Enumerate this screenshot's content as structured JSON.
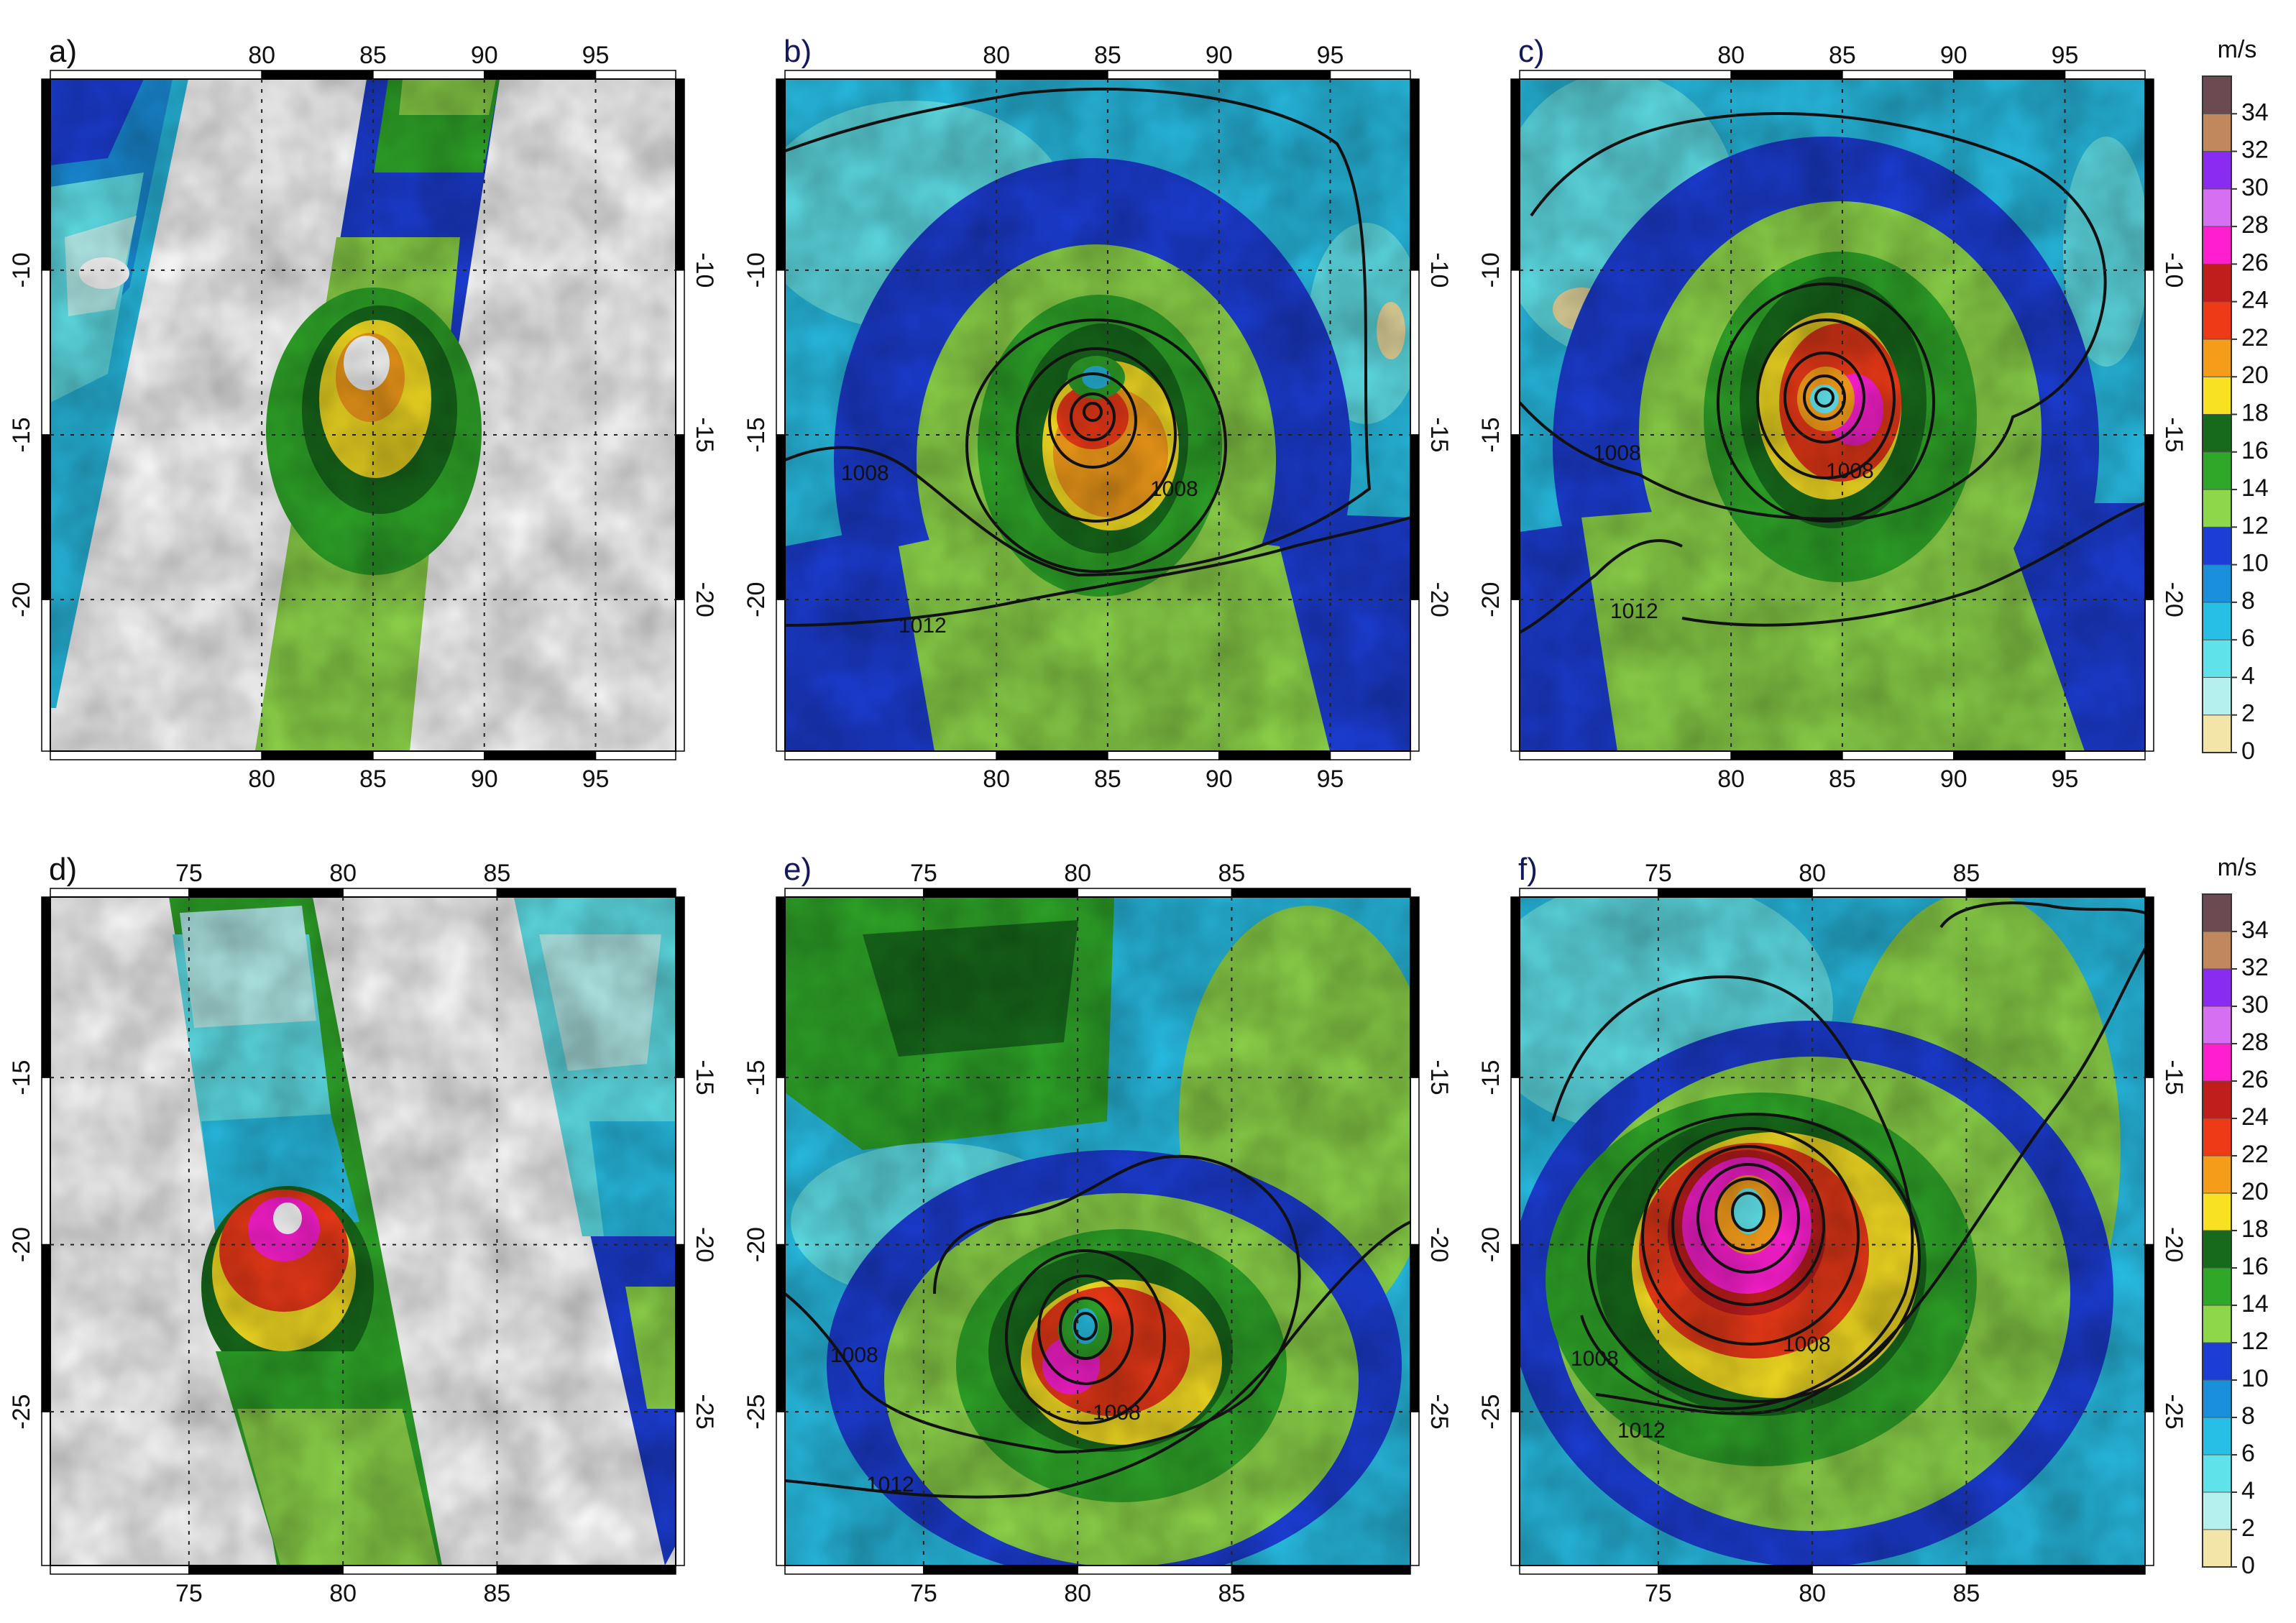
{
  "chart_data": {
    "type": "heatmap",
    "colorbar": {
      "unit": "m/s",
      "ticks": [
        0,
        2,
        4,
        6,
        8,
        10,
        12,
        14,
        16,
        18,
        20,
        22,
        24,
        26,
        28,
        30,
        32,
        34
      ],
      "colors": [
        "#f3e5a8",
        "#b5f0ee",
        "#60e2ea",
        "#28bfe6",
        "#1a8fdc",
        "#1c3ed7",
        "#8ed64a",
        "#2fa829",
        "#176a1b",
        "#f8e023",
        "#f59d1a",
        "#ef3a18",
        "#c01d1d",
        "#ff1fd1",
        "#d76ff2",
        "#8a2bf2",
        "#c0885c",
        "#6b4a52"
      ]
    },
    "panels": [
      {
        "label": "a)",
        "x_ticks": [
          "80",
          "85",
          "90",
          "95"
        ],
        "y_ticks": [
          "-10",
          "-15",
          "-20"
        ]
      },
      {
        "label": "b)",
        "x_ticks": [
          "80",
          "85",
          "90",
          "95"
        ],
        "y_ticks": [
          "-10",
          "-15",
          "-20"
        ],
        "isobar_labels": [
          "1008",
          "1008",
          "1012"
        ]
      },
      {
        "label": "c)",
        "x_ticks": [
          "80",
          "85",
          "90",
          "95"
        ],
        "y_ticks": [
          "-10",
          "-15",
          "-20"
        ],
        "isobar_labels": [
          "1008",
          "1008",
          "1012"
        ]
      },
      {
        "label": "d)",
        "x_ticks": [
          "75",
          "80",
          "85"
        ],
        "y_ticks": [
          "-15",
          "-20",
          "-25"
        ]
      },
      {
        "label": "e)",
        "x_ticks": [
          "75",
          "80",
          "85"
        ],
        "y_ticks": [
          "-15",
          "-20",
          "-25"
        ],
        "isobar_labels": [
          "1008",
          "1008",
          "1012"
        ]
      },
      {
        "label": "f)",
        "x_ticks": [
          "75",
          "80",
          "85"
        ],
        "y_ticks": [
          "-15",
          "-20",
          "-25"
        ],
        "isobar_labels": [
          "1008",
          "1008",
          "1012"
        ]
      }
    ]
  }
}
